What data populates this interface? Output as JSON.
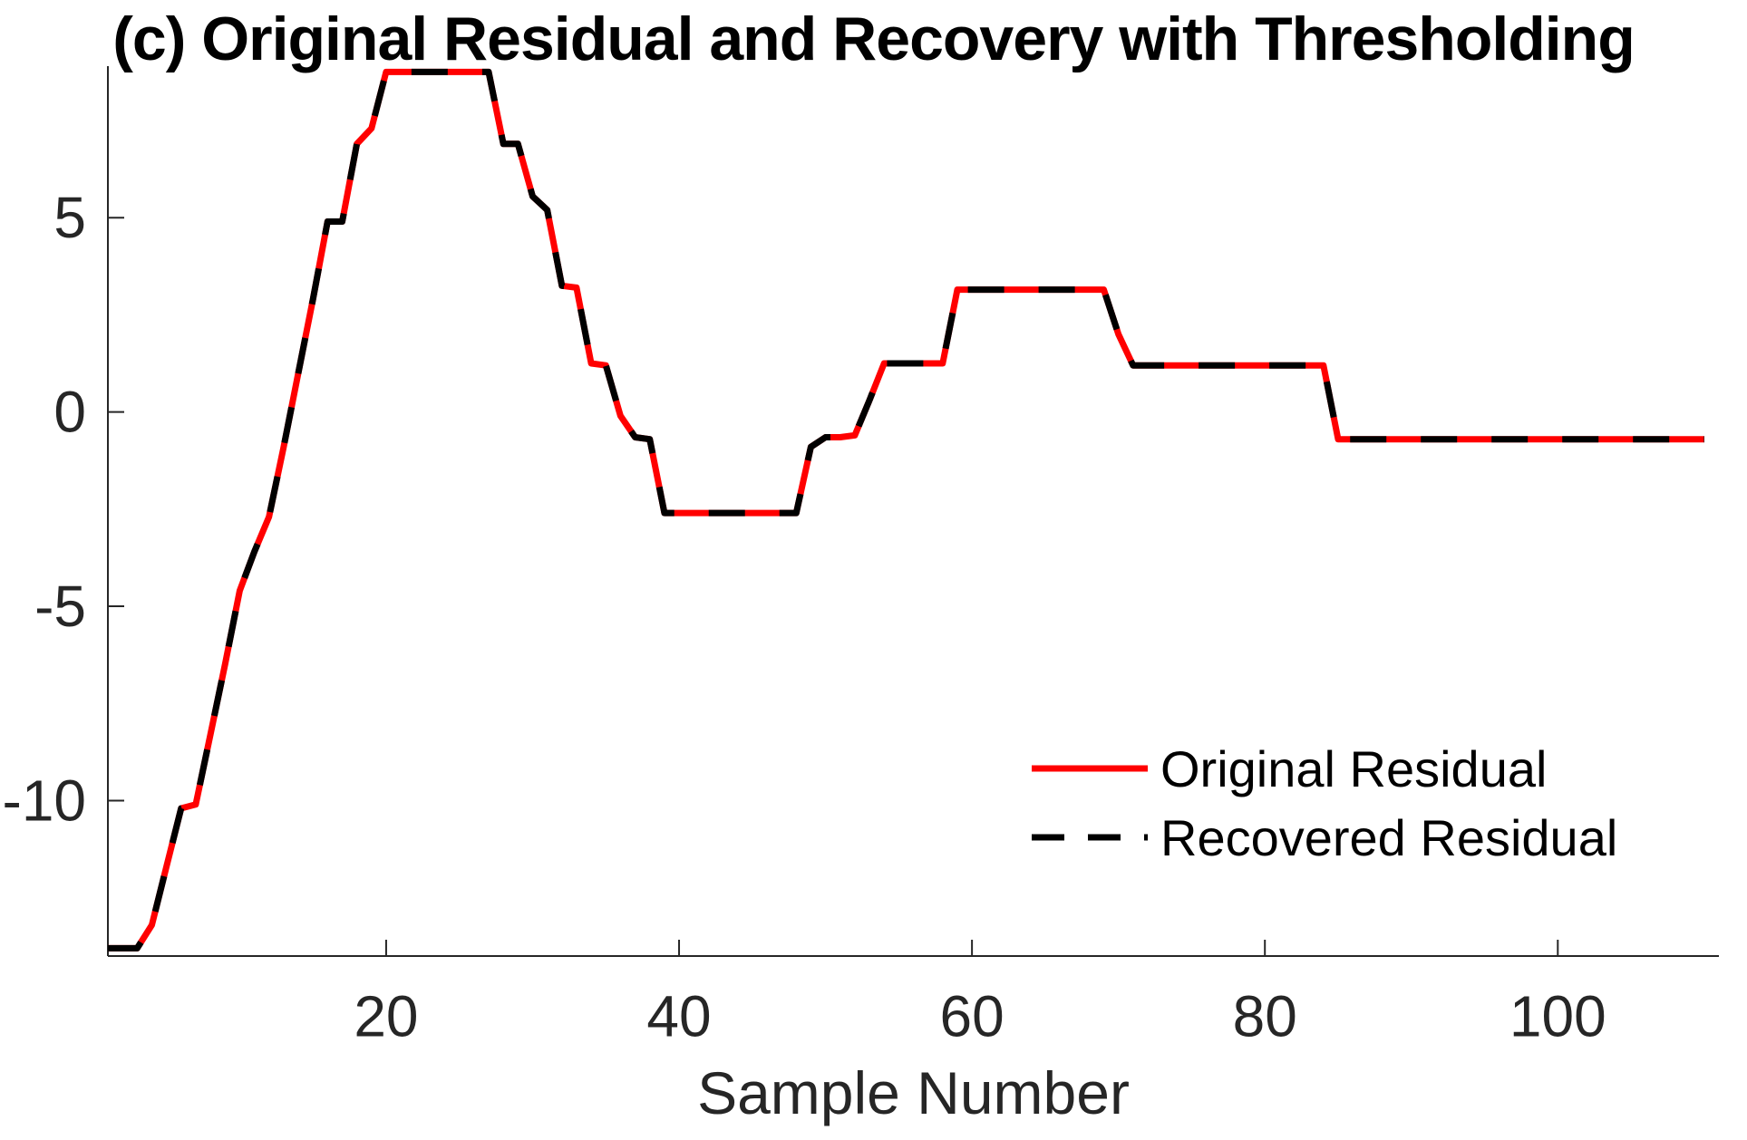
{
  "figure": {
    "title": "(c) Original Residual and Recovery with Thresholding",
    "xlabel": "Sample Number"
  },
  "colors": {
    "background": "#ffffff",
    "axis": "#262626",
    "title_text": "#000000",
    "original_residual": "#ff0000",
    "recovered_residual": "#000000"
  },
  "chart_data": {
    "type": "line",
    "title": "(c) Original Residual and Recovery with Thresholding",
    "xlabel": "Sample Number",
    "ylabel": "",
    "xlim": [
      1,
      111
    ],
    "ylim": [
      -14,
      8.9
    ],
    "xticks": [
      20,
      40,
      60,
      80,
      100
    ],
    "yticks": [
      5,
      0,
      -5,
      -10
    ],
    "grid": false,
    "legend_position": "lower-right",
    "x": [
      1,
      2,
      3,
      4,
      5,
      6,
      7,
      8,
      9,
      10,
      11,
      12,
      13,
      14,
      15,
      16,
      17,
      18,
      19,
      20,
      21,
      22,
      23,
      24,
      25,
      26,
      27,
      28,
      29,
      30,
      31,
      32,
      33,
      34,
      35,
      36,
      37,
      38,
      39,
      40,
      41,
      42,
      43,
      44,
      45,
      46,
      47,
      48,
      49,
      50,
      51,
      52,
      53,
      54,
      55,
      56,
      57,
      58,
      59,
      60,
      61,
      62,
      63,
      64,
      65,
      66,
      67,
      68,
      69,
      70,
      71,
      72,
      73,
      74,
      75,
      76,
      77,
      78,
      79,
      80,
      81,
      82,
      83,
      84,
      85,
      86,
      87,
      88,
      89,
      90,
      91,
      92,
      93,
      94,
      95,
      96,
      97,
      98,
      99,
      100,
      101,
      102,
      103,
      104,
      105,
      106,
      107,
      108,
      109,
      110
    ],
    "series": [
      {
        "name": "Original Residual",
        "color": "#ff0000",
        "style": "solid",
        "line_width": 7,
        "values": [
          -13.8,
          -13.8,
          -13.8,
          -13.2,
          -11.7,
          -10.2,
          -10.1,
          -8.3,
          -6.5,
          -4.6,
          -3.6,
          -2.7,
          -0.9,
          1.0,
          2.9,
          4.9,
          4.9,
          6.9,
          7.3,
          8.75,
          8.75,
          8.75,
          8.75,
          8.75,
          8.75,
          8.75,
          8.75,
          6.9,
          6.9,
          5.55,
          5.2,
          3.25,
          3.2,
          1.25,
          1.2,
          -0.1,
          -0.65,
          -0.7,
          -2.6,
          -2.6,
          -2.6,
          -2.6,
          -2.6,
          -2.6,
          -2.6,
          -2.6,
          -2.6,
          -2.6,
          -0.9,
          -0.65,
          -0.65,
          -0.6,
          0.3,
          1.25,
          1.25,
          1.25,
          1.25,
          1.25,
          3.15,
          3.15,
          3.15,
          3.15,
          3.15,
          3.15,
          3.15,
          3.15,
          3.15,
          3.15,
          3.15,
          2.0,
          1.2,
          1.2,
          1.2,
          1.2,
          1.2,
          1.2,
          1.2,
          1.2,
          1.2,
          1.2,
          1.2,
          1.2,
          1.2,
          1.2,
          -0.7,
          -0.7,
          -0.7,
          -0.7,
          -0.7,
          -0.7,
          -0.7,
          -0.7,
          -0.7,
          -0.7,
          -0.7,
          -0.7,
          -0.7,
          -0.7,
          -0.7,
          -0.7,
          -0.7,
          -0.7,
          -0.7,
          -0.7,
          -0.7,
          -0.7,
          -0.7,
          -0.7,
          -0.7,
          -0.7
        ]
      },
      {
        "name": "Recovered Residual",
        "color": "#000000",
        "style": "dashed",
        "line_width": 7,
        "values": [
          -13.8,
          -13.8,
          -13.8,
          -13.2,
          -11.7,
          -10.2,
          -10.1,
          -8.3,
          -6.5,
          -4.6,
          -3.6,
          -2.7,
          -0.9,
          1.0,
          2.9,
          4.9,
          4.9,
          6.9,
          7.3,
          8.75,
          8.75,
          8.75,
          8.75,
          8.75,
          8.75,
          8.75,
          8.75,
          6.9,
          6.9,
          5.55,
          5.2,
          3.25,
          3.2,
          1.25,
          1.2,
          -0.1,
          -0.65,
          -0.7,
          -2.6,
          -2.6,
          -2.6,
          -2.6,
          -2.6,
          -2.6,
          -2.6,
          -2.6,
          -2.6,
          -2.6,
          -0.9,
          -0.65,
          -0.65,
          -0.6,
          0.3,
          1.25,
          1.25,
          1.25,
          1.25,
          1.25,
          3.15,
          3.15,
          3.15,
          3.15,
          3.15,
          3.15,
          3.15,
          3.15,
          3.15,
          3.15,
          3.15,
          2.0,
          1.2,
          1.2,
          1.2,
          1.2,
          1.2,
          1.2,
          1.2,
          1.2,
          1.2,
          1.2,
          1.2,
          1.2,
          1.2,
          1.2,
          -0.7,
          -0.7,
          -0.7,
          -0.7,
          -0.7,
          -0.7,
          -0.7,
          -0.7,
          -0.7,
          -0.7,
          -0.7,
          -0.7,
          -0.7,
          -0.7,
          -0.7,
          -0.7,
          -0.7,
          -0.7,
          -0.7,
          -0.7,
          -0.7,
          -0.7,
          -0.7,
          -0.7,
          -0.7,
          -0.7
        ]
      }
    ]
  }
}
